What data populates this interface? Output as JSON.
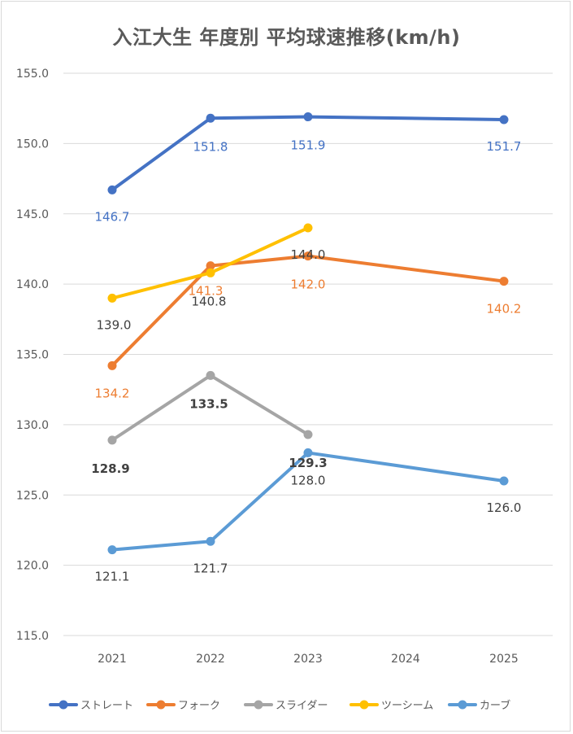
{
  "chart_data": {
    "type": "line",
    "title": "入江大生 年度別 平均球速推移(km/h)",
    "xlabel": "",
    "ylabel": "",
    "categories": [
      "2021",
      "2022",
      "2023",
      "2024",
      "2025"
    ],
    "ylim": [
      115.0,
      155.0
    ],
    "yticks": [
      "155.0",
      "150.0",
      "145.0",
      "140.0",
      "135.0",
      "130.0",
      "125.0",
      "120.0",
      "115.0"
    ],
    "grid": true,
    "legend": "bottom",
    "series": [
      {
        "name": "ストレート",
        "color": "#4472C4",
        "label_color": "#4472C4",
        "label_bold": false,
        "values": [
          146.7,
          151.8,
          151.9,
          null,
          151.7
        ],
        "labels": [
          "146.7",
          "151.8",
          "151.9",
          "",
          "151.7"
        ]
      },
      {
        "name": "フォーク",
        "color": "#ED7D31",
        "label_color": "#ED7D31",
        "label_bold": false,
        "values": [
          134.2,
          141.3,
          142.0,
          null,
          140.2
        ],
        "labels": [
          "134.2",
          "141.3",
          "142.0",
          "",
          "140.2"
        ]
      },
      {
        "name": "スライダー",
        "color": "#A5A5A5",
        "label_color": "#404040",
        "label_bold": true,
        "values": [
          128.9,
          133.5,
          129.3,
          null,
          null
        ],
        "labels": [
          "128.9",
          "133.5",
          "129.3",
          "",
          ""
        ]
      },
      {
        "name": "ツーシーム",
        "color": "#FFC000",
        "label_color": "#404040",
        "label_bold": false,
        "values": [
          139.0,
          140.8,
          144.0,
          null,
          null
        ],
        "labels": [
          "139.0",
          "140.8",
          "144.0",
          "",
          ""
        ]
      },
      {
        "name": "カーブ",
        "color": "#5B9BD5",
        "label_color": "#404040",
        "label_bold": false,
        "values": [
          121.1,
          121.7,
          128.0,
          null,
          126.0
        ],
        "labels": [
          "121.1",
          "121.7",
          "128.0",
          "",
          "126.0"
        ]
      }
    ]
  }
}
